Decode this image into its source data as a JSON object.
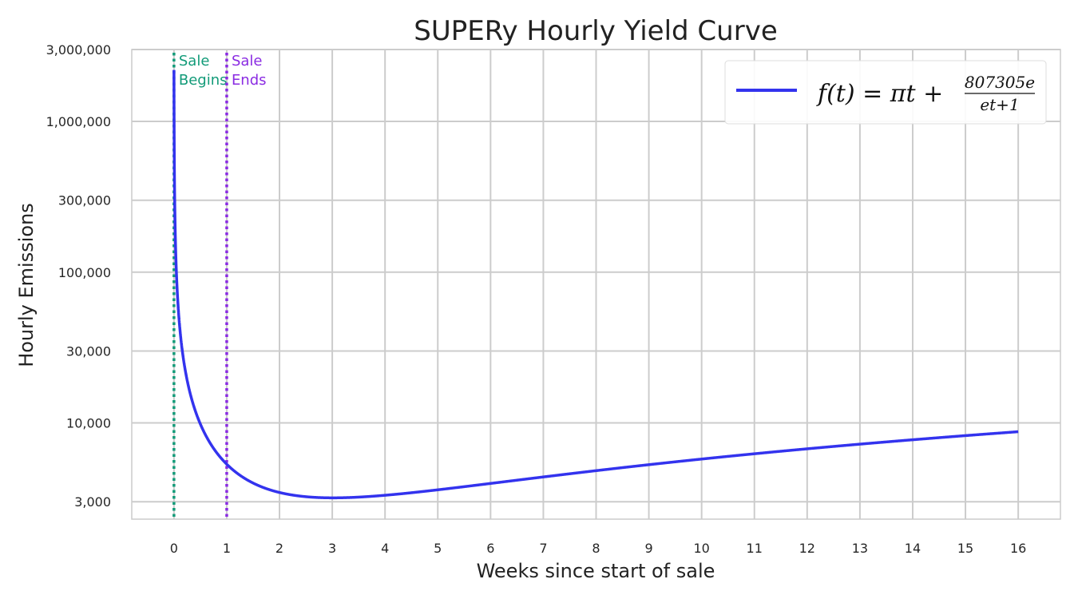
{
  "chart_data": {
    "type": "line",
    "title": "SUPERy Hourly Yield Curve",
    "xlabel": "Weeks since start of sale",
    "ylabel": "Hourly Emissions",
    "xlim": [
      -0.8,
      16.8
    ],
    "ylim": [
      2300,
      3000000
    ],
    "yscale": "log",
    "x_ticks": [
      0,
      1,
      2,
      3,
      4,
      5,
      6,
      7,
      8,
      9,
      10,
      11,
      12,
      13,
      14,
      15,
      16
    ],
    "x_tick_labels": [
      "0",
      "1",
      "2",
      "3",
      "4",
      "5",
      "6",
      "7",
      "8",
      "9",
      "10",
      "11",
      "12",
      "13",
      "14",
      "15",
      "16"
    ],
    "y_ticks": [
      3000,
      10000,
      30000,
      100000,
      300000,
      1000000,
      3000000
    ],
    "y_tick_labels": [
      "3,000",
      "10,000",
      "30,000",
      "100,000",
      "300,000",
      "1,000,000",
      "3,000,000"
    ],
    "grid": true,
    "series": [
      {
        "name": "f(t) = πt + 807305e/(et+1)",
        "color": "#3333ee",
        "function": "pi*t + 807305*e/(e*t+1), t in hours",
        "x": [
          0,
          0.01,
          0.02,
          0.05,
          0.1,
          0.2,
          0.5,
          1,
          2,
          3,
          4,
          6,
          8,
          10,
          12,
          14,
          16
        ],
        "y": [
          2194497,
          1035400,
          570700,
          234500,
          118600,
          59700,
          24300,
          5310,
          3030,
          2785,
          2897,
          3360,
          3950,
          4560,
          5170,
          5800,
          6410
        ]
      }
    ],
    "vlines": [
      {
        "x": 0,
        "label_line1": "Sale",
        "label_line2": "Begins",
        "color": "#139b79"
      },
      {
        "x": 1,
        "label_line1": "Sale",
        "label_line2": "Ends",
        "color": "#8a2be2"
      }
    ],
    "legend": {
      "position": "top-right",
      "lhs": "f(t) = πt +",
      "numerator": "807305e",
      "denominator": "et+1"
    }
  }
}
